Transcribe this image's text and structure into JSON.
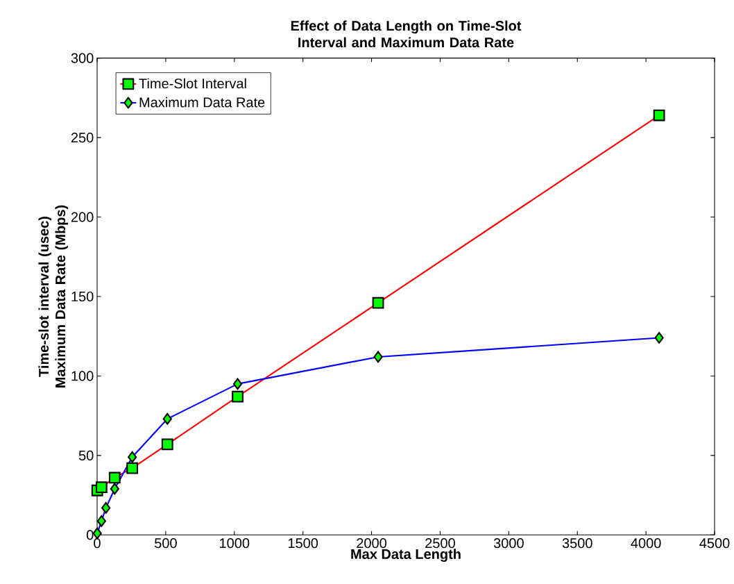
{
  "chart_data": {
    "type": "line",
    "title": "Effect of Data Length on Time-Slot Interval and Maximum Data Rate",
    "xlabel": "Max Data Length",
    "ylabel": "Time-slot interval (usec) Maximum Data Rate (Mbps)",
    "series": [
      {
        "name": "Time-Slot Interval",
        "color": "#ff0000",
        "marker": "square",
        "colors": [
          "#00ff00",
          "#00ff00",
          "#00ff00",
          "#00ff00",
          "#00ff00",
          "#00ff00",
          "#00ff00",
          "#00ff00"
        ],
        "x": [
          1,
          32,
          128,
          256,
          512,
          1024,
          2048,
          4096
        ],
        "values": [
          28,
          30,
          36,
          42,
          57,
          87,
          146,
          264
        ]
      },
      {
        "name": "Maximum Data Rate",
        "color": "#0000ff",
        "marker": "diamond",
        "colors": [
          "#00ff00",
          "#00ff00",
          "#00ff00",
          "#00ff00",
          "#00ff00",
          "#00ff00",
          "#00ff00",
          "#00ff00",
          "#00ff00"
        ],
        "x": [
          1,
          32,
          64,
          128,
          256,
          512,
          1024,
          2048,
          4096
        ],
        "values": [
          1,
          8.7,
          17,
          29,
          49,
          73,
          95,
          112,
          124
        ]
      }
    ],
    "xlim": [
      0,
      4500
    ],
    "xticks": [
      0,
      500,
      1000,
      1500,
      2000,
      2500,
      3000,
      3500,
      4000,
      4500
    ],
    "ylim": [
      0,
      300
    ],
    "yticks": [
      0,
      50,
      100,
      150,
      200,
      250,
      300
    ],
    "grid": false,
    "legend": "top left",
    "line_style": "solid"
  }
}
